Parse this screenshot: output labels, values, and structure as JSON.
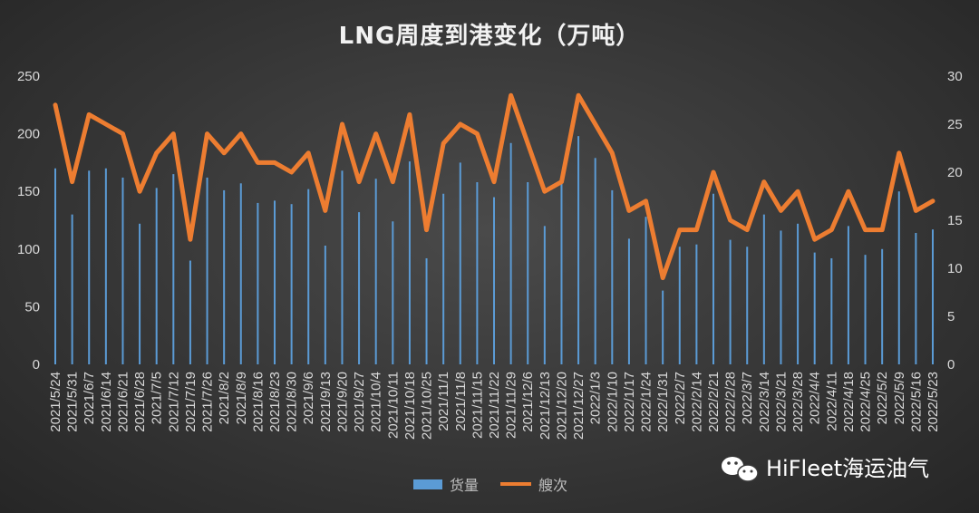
{
  "chart_data": {
    "type": "bar+line",
    "title": "LNG周度到港变化（万吨）",
    "categories": [
      "2021/5/24",
      "2021/5/31",
      "2021/6/7",
      "2021/6/14",
      "2021/6/21",
      "2021/6/28",
      "2021/7/5",
      "2021/7/12",
      "2021/7/19",
      "2021/7/26",
      "2021/8/2",
      "2021/8/9",
      "2021/8/16",
      "2021/8/23",
      "2021/8/30",
      "2021/9/6",
      "2021/9/13",
      "2021/9/20",
      "2021/9/27",
      "2021/10/4",
      "2021/10/11",
      "2021/10/18",
      "2021/10/25",
      "2021/11/1",
      "2021/11/8",
      "2021/11/15",
      "2021/11/22",
      "2021/11/29",
      "2021/12/6",
      "2021/12/13",
      "2021/12/20",
      "2021/12/27",
      "2022/1/3",
      "2022/1/10",
      "2022/1/17",
      "2022/1/24",
      "2022/1/31",
      "2022/2/7",
      "2022/2/14",
      "2022/2/21",
      "2022/2/28",
      "2022/3/7",
      "2022/3/14",
      "2022/3/21",
      "2022/3/28",
      "2022/4/4",
      "2022/4/11",
      "2022/4/18",
      "2022/4/25",
      "2022/5/2",
      "2022/5/9",
      "2022/5/16",
      "2022/5/23"
    ],
    "series": [
      {
        "name": "货量",
        "axis": "left",
        "type": "bar",
        "color": "#5b9bd5",
        "values": [
          170,
          130,
          168,
          170,
          162,
          122,
          153,
          165,
          90,
          162,
          151,
          157,
          140,
          142,
          139,
          152,
          103,
          168,
          132,
          161,
          124,
          176,
          92,
          148,
          175,
          158,
          145,
          192,
          158,
          120,
          162,
          198,
          179,
          151,
          109,
          128,
          64,
          102,
          104,
          148,
          108,
          102,
          130,
          116,
          122,
          97,
          92,
          120,
          95,
          100,
          150,
          114,
          117
        ]
      },
      {
        "name": "艘次",
        "axis": "right",
        "type": "line",
        "color": "#ed7d31",
        "values": [
          27,
          19,
          26,
          25,
          24,
          18,
          22,
          24,
          13,
          24,
          22,
          24,
          21,
          21,
          20,
          22,
          16,
          25,
          19,
          24,
          19,
          26,
          14,
          23,
          25,
          24,
          19,
          28,
          23,
          18,
          19,
          28,
          25,
          22,
          16,
          17,
          9,
          14,
          14,
          20,
          15,
          14,
          19,
          16,
          18,
          13,
          14,
          18,
          14,
          14,
          22,
          16,
          17
        ]
      }
    ],
    "y_left": {
      "min": 0,
      "max": 250,
      "ticks": [
        0,
        50,
        100,
        150,
        200,
        250
      ]
    },
    "y_right": {
      "min": 0,
      "max": 30,
      "ticks": [
        0,
        5,
        10,
        15,
        20,
        25,
        30
      ]
    },
    "grid": false,
    "legend": "bottom-center"
  },
  "legend": {
    "bar_label": "货量",
    "line_label": "艘次"
  },
  "watermark": {
    "text": "HiFleet海运油气",
    "icon": "wechat-icon"
  },
  "colors": {
    "bar": "#5b9bd5",
    "line": "#ed7d31",
    "background": "#3a3a3a"
  }
}
